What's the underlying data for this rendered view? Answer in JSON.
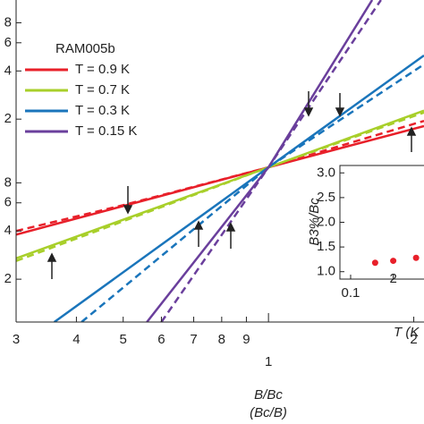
{
  "chart_data": {
    "type": "line",
    "log_x": true,
    "log_y": true,
    "x_label": "B/Bc",
    "x_label_2": "(Bc/B)",
    "legend_title": "RAM005b",
    "xlim": [
      0.3,
      2.1
    ],
    "xticks": [
      {
        "value": 0.3,
        "label": "3"
      },
      {
        "value": 0.4,
        "label": "4"
      },
      {
        "value": 0.5,
        "label": "5"
      },
      {
        "value": 0.6,
        "label": "6"
      },
      {
        "value": 0.7,
        "label": "7"
      },
      {
        "value": 0.8,
        "label": "8"
      },
      {
        "value": 0.9,
        "label": "9"
      },
      1,
      2
    ],
    "ylim": [
      0.108,
      11.1
    ],
    "yticks": [
      {
        "value": 0.2,
        "label": "2"
      },
      {
        "value": 0.4,
        "label": "4"
      },
      {
        "value": 0.6,
        "label": "6"
      },
      {
        "value": 0.8,
        "label": "8"
      },
      2,
      4,
      6,
      8
    ],
    "series": [
      {
        "name": "T = 0.9 K",
        "color": "#e8202a",
        "x": [
          0.3,
          1,
          2.1
        ],
        "values": [
          0.38,
          1,
          1.81
        ]
      },
      {
        "name": "T = 0.7 K",
        "color": "#a8cf2a",
        "x": [
          0.3,
          1,
          2.1
        ],
        "values": [
          0.27,
          1,
          2.26
        ]
      },
      {
        "name": "T = 0.3 K",
        "color": "#1a75bb",
        "x": [
          0.36,
          1,
          2.1
        ],
        "values": [
          0.108,
          1,
          5.0
        ]
      },
      {
        "name": "T = 0.15 K",
        "color": "#6a3f9c",
        "x": [
          0.56,
          1,
          1.64
        ],
        "values": [
          0.108,
          1,
          11.1
        ]
      }
    ],
    "dashed_series": [
      {
        "color": "#e8202a",
        "x": [
          0.3,
          0.5,
          1,
          2.1
        ],
        "values": [
          0.4,
          0.58,
          1,
          1.95
        ]
      },
      {
        "color": "#a8cf2a",
        "x": [
          0.3,
          1,
          2.1
        ],
        "values": [
          0.26,
          1,
          2.2
        ]
      },
      {
        "color": "#1a75bb",
        "x": [
          0.41,
          1,
          2.1
        ],
        "values": [
          0.108,
          1,
          4.4
        ]
      },
      {
        "color": "#6a3f9c",
        "x": [
          0.6,
          1,
          1.71
        ],
        "values": [
          0.108,
          1,
          11.1
        ]
      }
    ],
    "inset": {
      "type": "scatter",
      "y_label": "B3%/Bc",
      "x_label": "T (K",
      "xlim": [
        0.084,
        0.36
      ],
      "xticks": [
        0.1,
        {
          "value": 0.2,
          "label": "2"
        }
      ],
      "ylim": [
        0.85,
        3.15
      ],
      "yticks": [
        {
          "value": 1,
          "label": "1.0"
        },
        {
          "value": 1.5,
          "label": "1.5"
        },
        {
          "value": 2,
          "label": "2.0"
        },
        {
          "value": 2.5,
          "label": "2.5"
        },
        {
          "value": 3,
          "label": "3.0"
        }
      ],
      "color": "#e8202a",
      "x": [
        0.149,
        0.2,
        0.29
      ],
      "values": [
        1.18,
        1.22,
        1.28
      ]
    }
  }
}
